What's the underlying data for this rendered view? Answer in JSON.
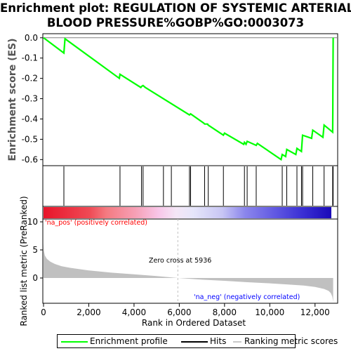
{
  "title_line1": "Enrichment plot: REGULATION OF SYSTEMIC ARTERIAL",
  "title_line2": "BLOOD PRESSURE%GOBP%GO:0003073",
  "colors": {
    "es_line": "#00ff00",
    "hits": "#000000",
    "metric_fill": "#c0c0c0",
    "pos_label": "#ff0000",
    "neg_label": "#0000ff",
    "zero_cross_line": "#c0c0c0"
  },
  "chart_data": [
    {
      "type": "line",
      "name": "enrichment_profile",
      "ylabel": "Enrichment score (ES)",
      "ylim": [
        -0.63,
        0.02
      ],
      "yticks": [
        0.0,
        -0.1,
        -0.2,
        -0.3,
        -0.4,
        -0.5,
        -0.6
      ],
      "ytick_labels": [
        "0.0",
        "-0.1",
        "-0.2",
        "-0.3",
        "-0.4",
        "-0.5",
        "-0.6"
      ],
      "xlim": [
        0,
        13000
      ],
      "grid": false,
      "x": [
        0,
        900,
        950,
        3350,
        3380,
        4300,
        4330,
        4360,
        4400,
        4500,
        6450,
        6500,
        7080,
        7120,
        7250,
        7280,
        7950,
        8000,
        8850,
        8880,
        8950,
        9000,
        9400,
        9450,
        10500,
        10550,
        10700,
        10750,
        11150,
        11200,
        11400,
        11450,
        11850,
        11900,
        12350,
        12400,
        12780,
        12785,
        12790,
        12795,
        12800
      ],
      "y": [
        0.0,
        -0.075,
        -0.005,
        -0.2,
        -0.18,
        -0.245,
        -0.24,
        -0.238,
        -0.235,
        -0.245,
        -0.38,
        -0.375,
        -0.42,
        -0.425,
        -0.425,
        -0.43,
        -0.48,
        -0.47,
        -0.525,
        -0.515,
        -0.525,
        -0.51,
        -0.53,
        -0.52,
        -0.6,
        -0.575,
        -0.585,
        -0.55,
        -0.575,
        -0.545,
        -0.56,
        -0.48,
        -0.495,
        -0.455,
        -0.49,
        -0.43,
        -0.465,
        -0.36,
        -0.25,
        -0.13,
        0.0
      ]
    },
    {
      "type": "hits",
      "name": "hits",
      "xlim": [
        0,
        13000
      ],
      "x": [
        900,
        3380,
        4330,
        4400,
        5300,
        5650,
        6450,
        6500,
        7120,
        7280,
        7950,
        8880,
        9000,
        9400,
        10550,
        10750,
        11200,
        11400,
        11450,
        11900,
        12400,
        12780,
        12800
      ]
    },
    {
      "type": "area",
      "name": "ranked_list_metric",
      "xlabel": "Rank in Ordered Dataset",
      "ylabel": "Ranked list metric (PreRanked)",
      "ylim": [
        -4.5,
        10.5
      ],
      "yticks": [
        10,
        5,
        0
      ],
      "ytick_labels": [
        "10",
        "5",
        "0"
      ],
      "xlim": [
        0,
        13000
      ],
      "xticks": [
        0,
        2000,
        4000,
        6000,
        8000,
        10000,
        12000
      ],
      "xtick_labels": [
        "0",
        "2,000",
        "4,000",
        "6,000",
        "8,000",
        "10,000",
        "12,000"
      ],
      "x": [
        0,
        20,
        60,
        150,
        300,
        500,
        800,
        1200,
        2000,
        3000,
        4000,
        5000,
        5936,
        7000,
        8000,
        9000,
        10000,
        10800,
        11500,
        12000,
        12400,
        12600,
        12700,
        12760,
        12800
      ],
      "y": [
        6.2,
        4.8,
        4.0,
        3.4,
        2.9,
        2.5,
        2.1,
        1.8,
        1.35,
        0.95,
        0.65,
        0.35,
        0.0,
        -0.3,
        -0.5,
        -0.75,
        -0.95,
        -1.15,
        -1.35,
        -1.6,
        -1.95,
        -2.3,
        -2.7,
        -3.3,
        -4.2
      ]
    }
  ],
  "annotations": {
    "pos_label": "'na_pos' (positively correlated)",
    "neg_label": "'na_neg' (negatively correlated)",
    "zero_cross_text": "Zero cross at 5936",
    "zero_cross_rank": 5936
  },
  "legend": {
    "items": [
      {
        "label": "Enrichment profile"
      },
      {
        "label": "Hits"
      },
      {
        "label": "Ranking metric scores"
      }
    ]
  }
}
